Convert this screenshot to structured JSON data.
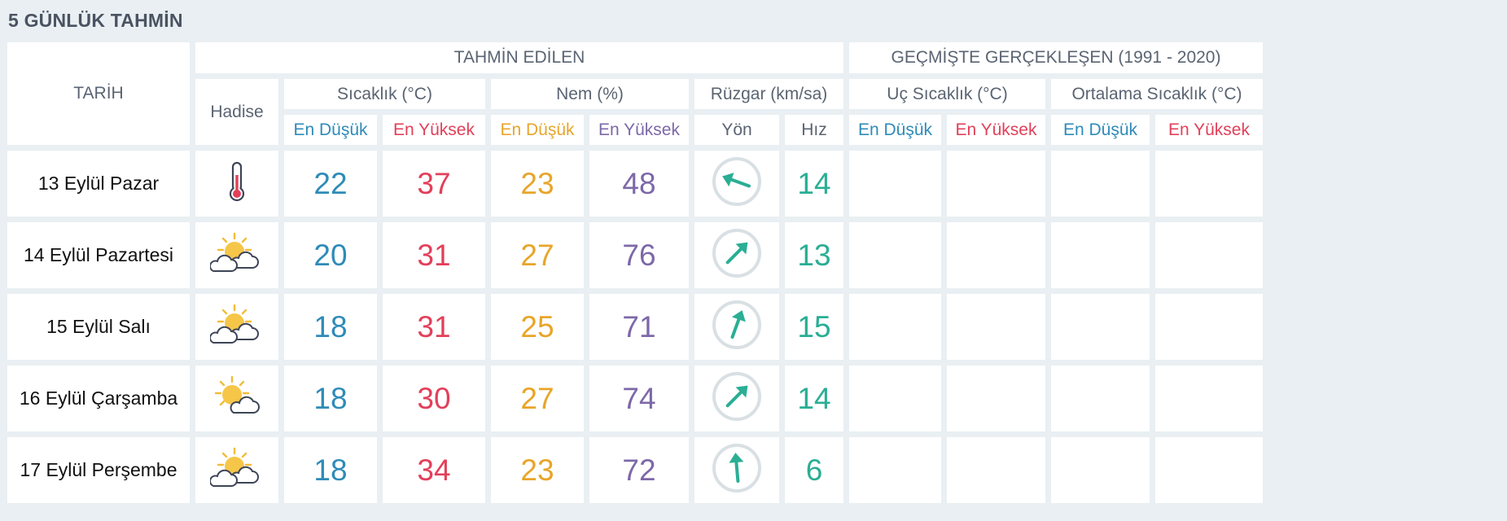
{
  "title": "5 GÜNLÜK TAHMİN",
  "header": {
    "tarih": "TARİH",
    "tahmin_edilen": "TAHMİN EDİLEN",
    "gecmiste": "GEÇMİŞTE GERÇEKLEŞEN (1991 - 2020)",
    "hadise": "Hadise",
    "sicaklik": "Sıcaklık (°C)",
    "nem": "Nem (%)",
    "ruzgar": "Rüzgar (km/sa)",
    "uc_sicaklik": "Uç Sıcaklık (°C)",
    "ortalama_sicaklik": "Ortalama Sıcaklık (°C)",
    "en_dusuk": "En Düşük",
    "en_yuksek": "En Yüksek",
    "yon": "Yön",
    "hiz": "Hız"
  },
  "colors": {
    "low": "#2e8bb8",
    "high": "#e2405a",
    "humidity_low": "#e8a52a",
    "humidity_high": "#7d68a8",
    "wind": "#2aae94"
  },
  "days": [
    {
      "date": "13 Eylül Pazar",
      "icon": "thermometer-icon",
      "temp_low": "22",
      "temp_high": "37",
      "hum_low": "23",
      "hum_high": "48",
      "wind_dir_deg": 110,
      "wind_speed": "14"
    },
    {
      "date": "14 Eylül Pazartesi",
      "icon": "partly-cloudy-icon",
      "temp_low": "20",
      "temp_high": "31",
      "hum_low": "27",
      "hum_high": "76",
      "wind_dir_deg": 225,
      "wind_speed": "13"
    },
    {
      "date": "15 Eylül Salı",
      "icon": "partly-cloudy-icon",
      "temp_low": "18",
      "temp_high": "31",
      "hum_low": "25",
      "hum_high": "71",
      "wind_dir_deg": 200,
      "wind_speed": "15"
    },
    {
      "date": "16 Eylül Çarşamba",
      "icon": "sun-behind-cloud-icon",
      "temp_low": "18",
      "temp_high": "30",
      "hum_low": "27",
      "hum_high": "74",
      "wind_dir_deg": 225,
      "wind_speed": "14"
    },
    {
      "date": "17 Eylül Perşembe",
      "icon": "partly-cloudy-icon",
      "temp_low": "18",
      "temp_high": "34",
      "hum_low": "23",
      "hum_high": "72",
      "wind_dir_deg": 175,
      "wind_speed": "6"
    }
  ]
}
